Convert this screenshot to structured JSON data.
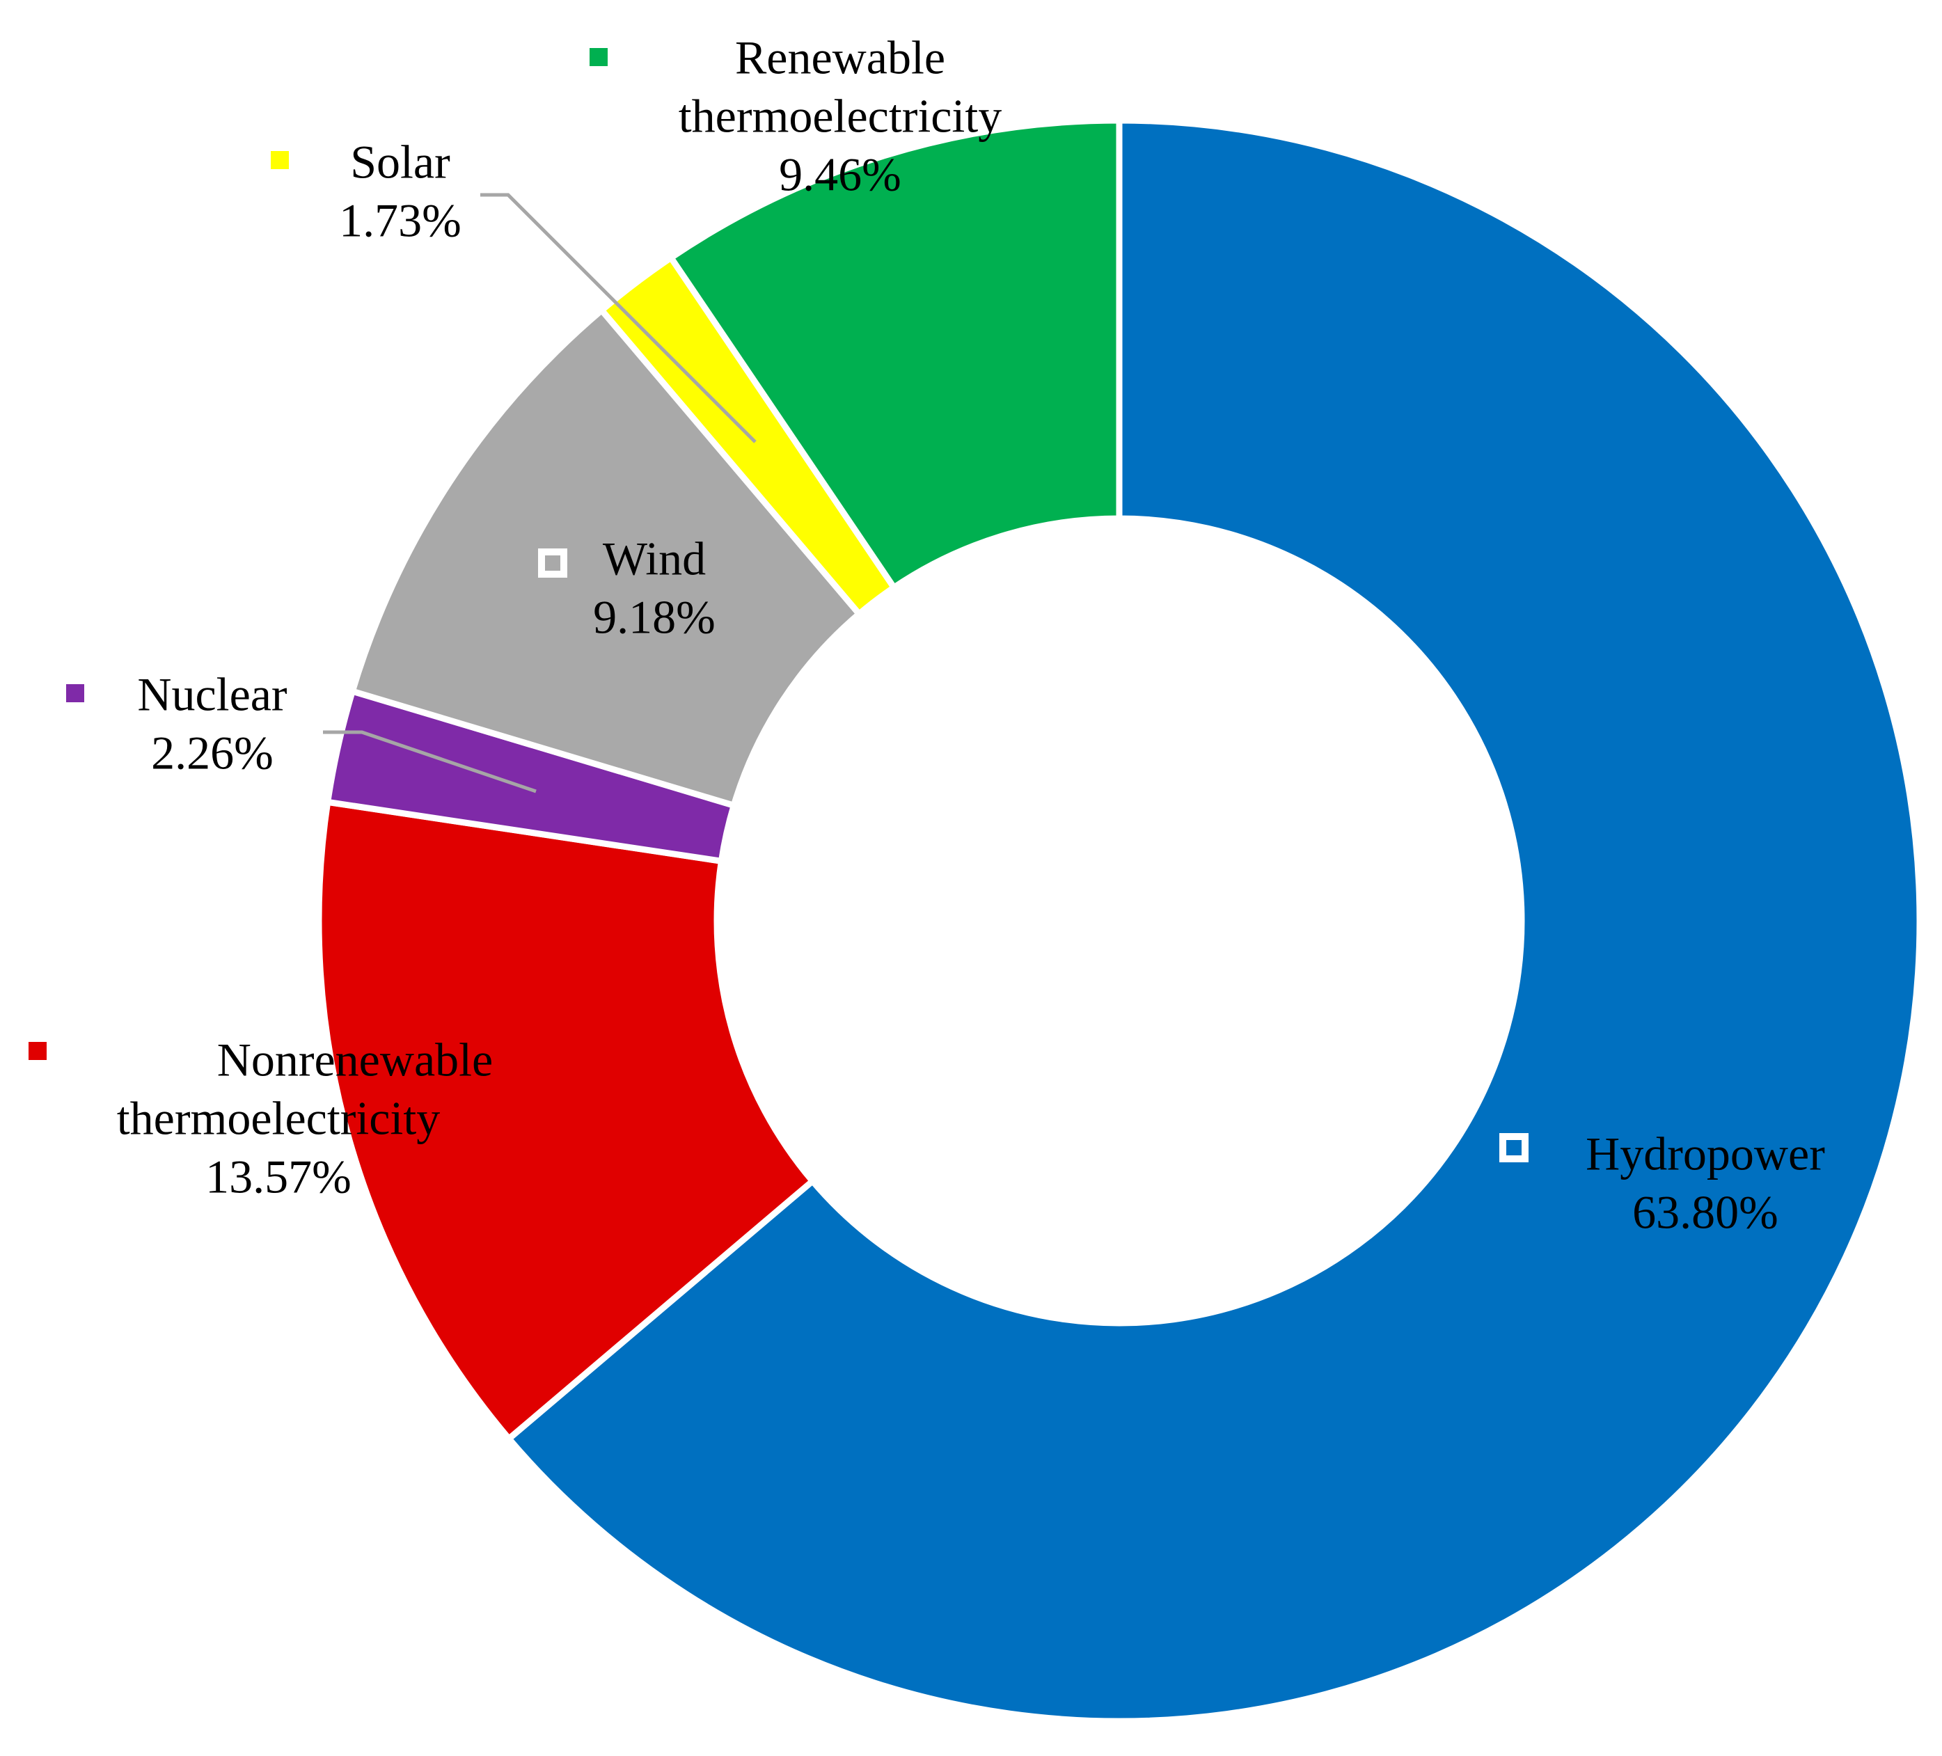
{
  "chart_data": {
    "type": "pie",
    "donut": true,
    "title": "",
    "colors": {
      "leader_line": "#A6A6A6",
      "background": "#FFFFFF"
    },
    "slices": [
      {
        "label": "Hydropower",
        "label_lines": [
          "Hydropower"
        ],
        "value": 63.8,
        "value_text": "63.80%",
        "color": "#0070C0",
        "legend_key": "hollow"
      },
      {
        "label": "Nonrenewable thermoelectricity",
        "label_lines": [
          "Nonrenewable",
          "thermoelectricity"
        ],
        "value": 13.57,
        "value_text": "13.57%",
        "color": "#E00000",
        "legend_key": "solid"
      },
      {
        "label": "Nuclear",
        "label_lines": [
          "Nuclear"
        ],
        "value": 2.26,
        "value_text": "2.26%",
        "color": "#7F2AA8",
        "legend_key": "solid"
      },
      {
        "label": "Wind",
        "label_lines": [
          "Wind"
        ],
        "value": 9.18,
        "value_text": "9.18%",
        "color": "#A9A9A9",
        "legend_key": "hollow"
      },
      {
        "label": "Solar",
        "label_lines": [
          "Solar"
        ],
        "value": 1.73,
        "value_text": "1.73%",
        "color": "#FFFF00",
        "legend_key": "solid"
      },
      {
        "label": "Renewable thermoelectricity",
        "label_lines": [
          "Renewable",
          "thermoelectricity"
        ],
        "value": 9.46,
        "value_text": "9.46%",
        "color": "#00B050",
        "legend_key": "solid"
      }
    ]
  }
}
